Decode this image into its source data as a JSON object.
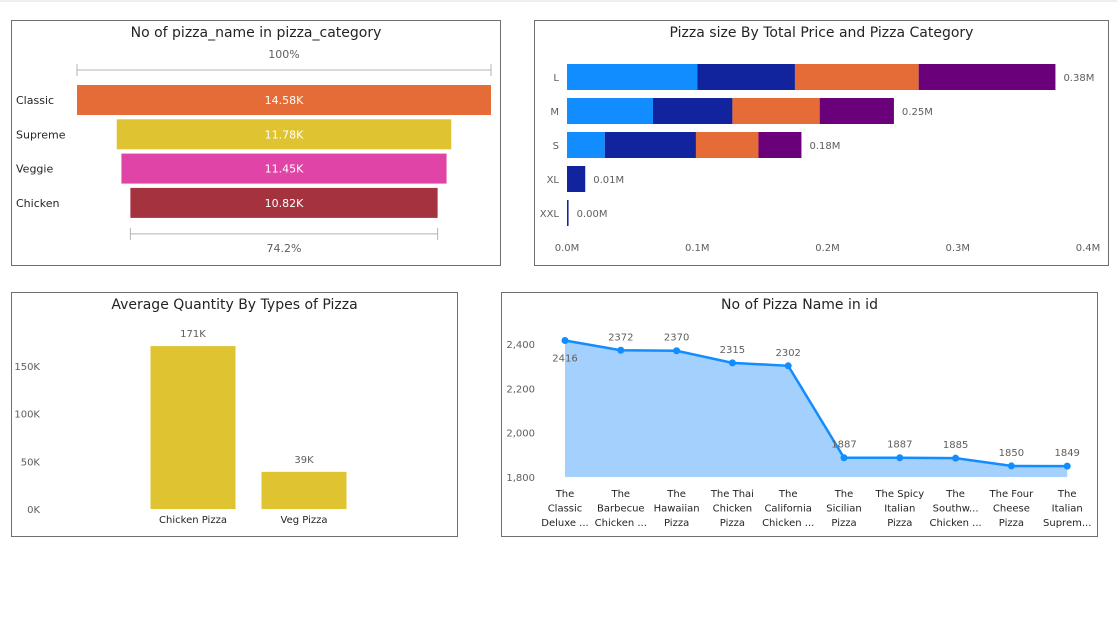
{
  "chart_data": [
    {
      "type": "bar",
      "subtype": "funnel",
      "title": "No of pizza_name in pizza_category",
      "categories": [
        "Classic",
        "Supreme",
        "Veggie",
        "Chicken"
      ],
      "values": [
        14580,
        11780,
        11450,
        10820
      ],
      "value_labels": [
        "14.58K",
        "11.78K",
        "11.45K",
        "10.82K"
      ],
      "colors": [
        "#E66C37",
        "#E0C331",
        "#E044A7",
        "#A5333F"
      ],
      "top_label": "100%",
      "bottom_label": "74.2%"
    },
    {
      "type": "bar",
      "subtype": "stacked-horizontal",
      "title": "Pizza size By Total Price and Pizza Category",
      "categories": [
        "L",
        "M",
        "S",
        "XL",
        "XXL"
      ],
      "totals": [
        0.38,
        0.25,
        0.18,
        0.01,
        0.0
      ],
      "total_labels": [
        "0.38M",
        "0.25M",
        "0.18M",
        "0.01M",
        "0.00M"
      ],
      "segment_colors": [
        "#118DFF",
        "#12239E",
        "#E66C37",
        "#6B007B"
      ],
      "segments": [
        [
          0.1,
          0.075,
          0.095,
          0.105
        ],
        [
          0.066,
          0.061,
          0.067,
          0.057
        ],
        [
          0.029,
          0.07,
          0.048,
          0.033
        ],
        [
          0,
          0.014,
          0,
          0
        ],
        [
          0,
          0.0012,
          0,
          0
        ]
      ],
      "xlim": [
        0,
        0.4
      ],
      "x_ticks": [
        "0.0M",
        "0.1M",
        "0.2M",
        "0.3M",
        "0.4M"
      ]
    },
    {
      "type": "bar",
      "title": "Average Quantity By Types of Pizza",
      "categories": [
        "Chicken Pizza",
        "Veg Pizza"
      ],
      "values": [
        171000,
        39000
      ],
      "value_labels": [
        "171K",
        "39K"
      ],
      "color": "#E0C331",
      "ylim": [
        0,
        190000
      ],
      "y_ticks": [
        0,
        50000,
        100000,
        150000
      ],
      "y_tick_labels": [
        "0K",
        "50K",
        "100K",
        "150K"
      ]
    },
    {
      "type": "area",
      "title": "No of Pizza Name in id",
      "categories": [
        [
          "The",
          "Classic",
          "Deluxe ..."
        ],
        [
          "The",
          "Barbecue",
          "Chicken ..."
        ],
        [
          "The",
          "Hawaiian",
          "Pizza"
        ],
        [
          "The Thai",
          "Chicken",
          "Pizza"
        ],
        [
          "The",
          "California",
          "Chicken ..."
        ],
        [
          "The",
          "Sicilian",
          "Pizza"
        ],
        [
          "The Spicy",
          "Italian",
          "Pizza"
        ],
        [
          "The",
          "Southw...",
          "Chicken ..."
        ],
        [
          "The Four",
          "Cheese",
          "Pizza"
        ],
        [
          "The",
          "Italian",
          "Suprem..."
        ]
      ],
      "values": [
        2416,
        2372,
        2370,
        2315,
        2302,
        1887,
        1887,
        1885,
        1850,
        1849
      ],
      "value_labels": [
        "2416",
        "2372",
        "2370",
        "2315",
        "2302",
        "1887",
        "1887",
        "1885",
        "1850",
        "1849"
      ],
      "line_color": "#118DFF",
      "fill_color": "#A3D0FC",
      "ylim": [
        1800,
        2450
      ],
      "y_ticks": [
        1800,
        2000,
        2200,
        2400
      ],
      "y_tick_labels": [
        "1,800",
        "2,000",
        "2,200",
        "2,400"
      ]
    }
  ]
}
